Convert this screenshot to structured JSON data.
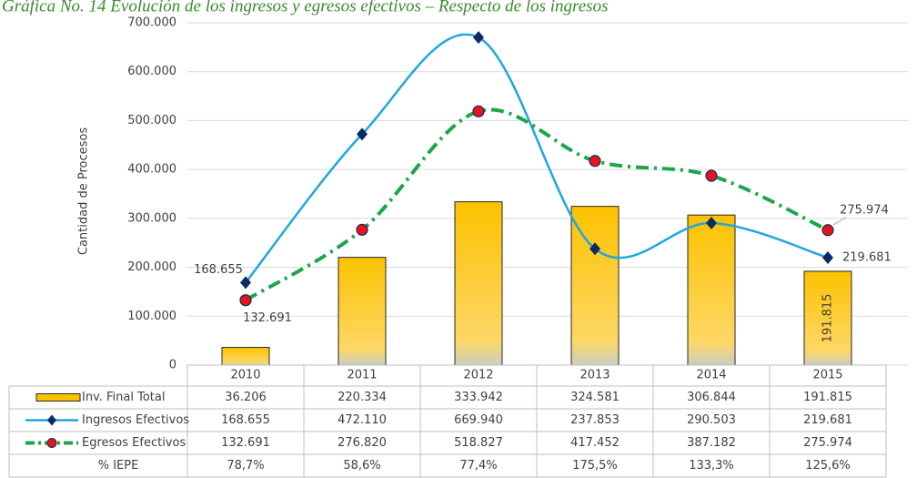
{
  "chart_data": {
    "type": "bar_line",
    "title": "Gráfica No. 14 Evolución de los ingresos y egresos efectivos – Respecto de los ingresos",
    "ylabel": "Cantidad de Procesos",
    "categories": [
      "2010",
      "2011",
      "2012",
      "2013",
      "2014",
      "2015"
    ],
    "ylim": [
      0,
      700000
    ],
    "yticks": [
      0,
      {
        "value": 100000,
        "label": "100.000"
      },
      {
        "value": 200000,
        "label": "200.000"
      },
      {
        "value": 300000,
        "label": "300.000"
      },
      {
        "value": 400000,
        "label": "400.000"
      },
      {
        "value": 500000,
        "label": "500.000"
      },
      {
        "value": 600000,
        "label": "600.000"
      },
      {
        "value": 700000,
        "label": "700.000"
      }
    ],
    "grid": true,
    "series": [
      {
        "name": "Inv. Final Total",
        "type": "bar",
        "color": "#fcc200",
        "values": [
          36206,
          220334,
          333942,
          324581,
          306844,
          191815
        ],
        "value_labels": [
          "36.206",
          "220.334",
          "333.942",
          "324.581",
          "306.844",
          "191.815"
        ]
      },
      {
        "name": "Ingresos Efectivos",
        "type": "line",
        "color": "#1ea7e1",
        "marker_color": "#0d2a63",
        "values": [
          168655,
          472110,
          669940,
          237853,
          290503,
          219681
        ],
        "value_labels": [
          "168.655",
          "472.110",
          "669.940",
          "237.853",
          "290.503",
          "219.681"
        ]
      },
      {
        "name": "Egresos Efectivos",
        "type": "line",
        "color": "#1ba64b",
        "marker_color": "#e8141c",
        "values": [
          132691,
          276820,
          518827,
          417452,
          387182,
          275974
        ],
        "value_labels": [
          "132.691",
          "276.820",
          "518.827",
          "417.452",
          "387.182",
          "275.974"
        ]
      }
    ],
    "iepe": {
      "name": "% IEPE",
      "values": [
        78.7,
        58.6,
        77.4,
        175.5,
        133.3,
        125.6
      ],
      "value_labels": [
        "78,7%",
        "58,6%",
        "77,4%",
        "175,5%",
        "133,3%",
        "125,6%"
      ]
    }
  }
}
